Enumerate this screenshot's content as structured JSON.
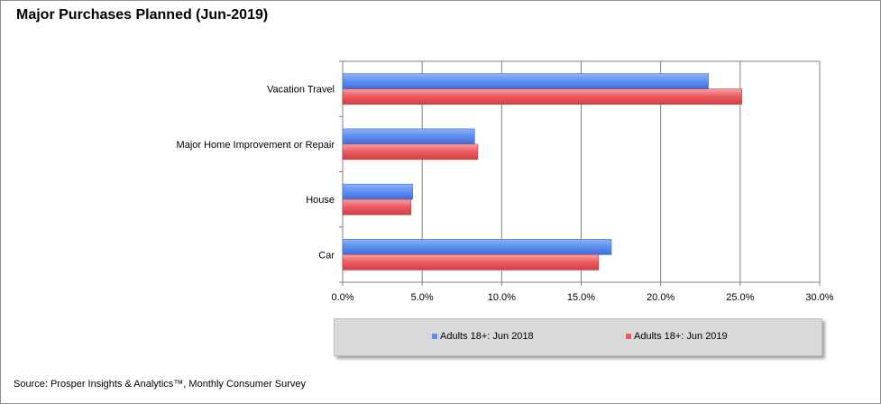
{
  "title": "Major Purchases Planned (Jun-2019)",
  "source": "Source: Prosper Insights & Analytics™, Monthly Consumer Survey",
  "colors": {
    "series1": "#5b8ef0",
    "series2": "#ea5a5f",
    "grid": "#808080",
    "legend_bg": "#d9d9d9"
  },
  "chart_data": {
    "type": "bar",
    "orientation": "horizontal",
    "categories": [
      "Vacation Travel",
      "Major Home Improvement or Repair",
      "House",
      "Car"
    ],
    "series": [
      {
        "name": "Adults 18+: Jun 2018",
        "values": [
          23.0,
          8.3,
          4.4,
          16.9
        ]
      },
      {
        "name": "Adults 18+: Jun 2019",
        "values": [
          25.1,
          8.5,
          4.3,
          16.1
        ]
      }
    ],
    "xlim": [
      0,
      30
    ],
    "xticks": [
      "0.0%",
      "5.0%",
      "10.0%",
      "15.0%",
      "20.0%",
      "25.0%",
      "30.0%"
    ],
    "grid": true,
    "legend_position": "bottom"
  }
}
